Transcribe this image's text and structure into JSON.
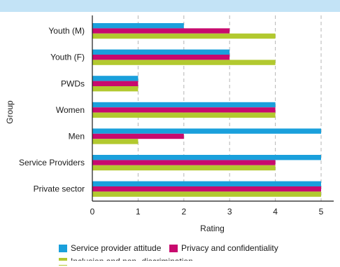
{
  "chart_data": {
    "type": "bar",
    "orientation": "horizontal",
    "xlabel": "Rating",
    "ylabel": "Group",
    "xlim": [
      0,
      5
    ],
    "xticks": [
      "0",
      "1",
      "2",
      "3",
      "4",
      "5"
    ],
    "grid": "vertical dashed",
    "legend_position": "bottom",
    "categories": [
      "Youth (M)",
      "Youth (F)",
      "PWDs",
      "Women",
      "Men",
      "Service Providers",
      "Private sector"
    ],
    "series": [
      {
        "name": "Service provider attitude",
        "color": "#1aa0dc",
        "values": [
          2,
          3,
          1,
          4,
          5,
          5,
          5
        ]
      },
      {
        "name": "Privacy and confidentiality",
        "color": "#c80a6e",
        "values": [
          3,
          3,
          1,
          4,
          2,
          4,
          5
        ]
      },
      {
        "name": "Inclusion and non- discrimination",
        "color": "#b2c92f",
        "values": [
          4,
          4,
          1,
          4,
          1,
          4,
          5
        ]
      }
    ]
  }
}
